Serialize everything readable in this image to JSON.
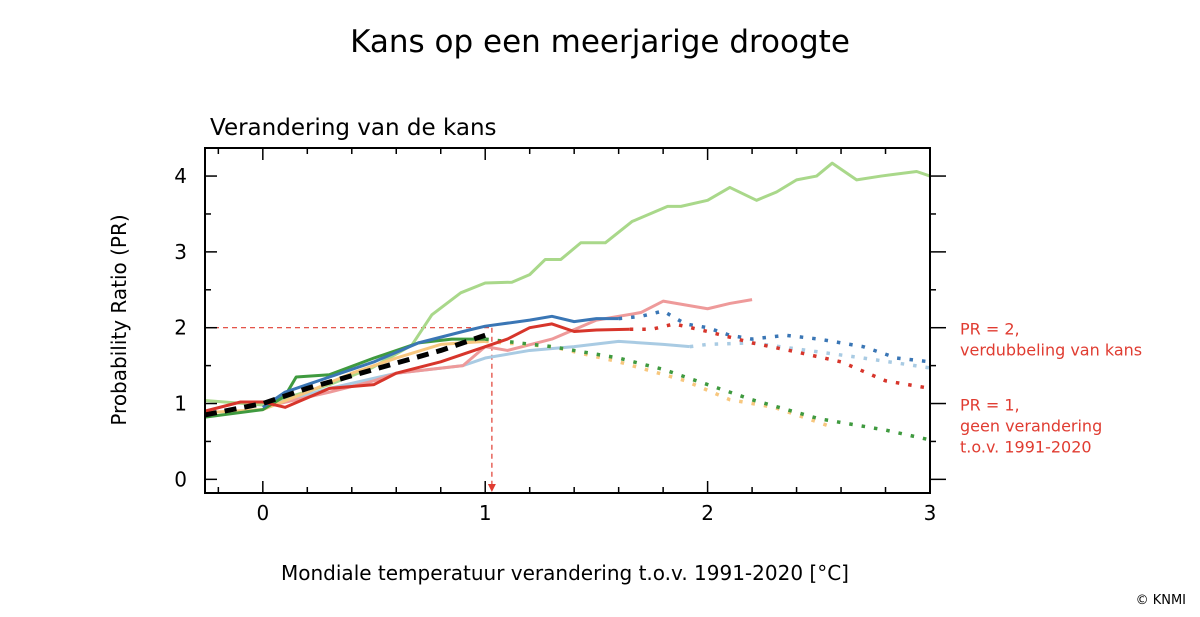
{
  "title": "Kans op een meerjarige droogte",
  "copyright": "© KNMI",
  "chart_data": {
    "type": "line",
    "subtitle": "Verandering van de kans",
    "xlabel": "Mondiale temperatuur verandering t.o.v. 1991-2020 [°C]",
    "ylabel": "Probability Ratio (PR)",
    "xlim": [
      -0.26,
      3.0
    ],
    "ylim": [
      -0.18,
      4.37
    ],
    "xticks": [
      "0",
      "1",
      "2",
      "3"
    ],
    "yticks": [
      "0",
      "1",
      "2",
      "3",
      "4"
    ],
    "grid": false,
    "annotations": [
      {
        "lines": [
          "PR = 2,",
          "verdubbeling van kans"
        ],
        "y": 2,
        "color": "#e03c31"
      },
      {
        "lines": [
          "PR = 1,",
          "geen verandering",
          "t.o.v. 1991-2020"
        ],
        "y": 1,
        "color": "#e03c31"
      }
    ],
    "reference": {
      "pr": 2,
      "temperature": 1.03,
      "color": "#e03c31"
    },
    "series": [
      {
        "name": "light-green",
        "color": "#a9d88a",
        "solid": [
          [
            -0.26,
            1.04
          ],
          [
            0,
            0.98
          ],
          [
            0.3,
            1.25
          ],
          [
            0.49,
            1.47
          ],
          [
            0.67,
            1.77
          ],
          [
            0.76,
            2.17
          ],
          [
            0.89,
            2.46
          ],
          [
            1.0,
            2.59
          ],
          [
            1.12,
            2.6
          ],
          [
            1.2,
            2.7
          ],
          [
            1.27,
            2.9
          ],
          [
            1.34,
            2.9
          ],
          [
            1.43,
            3.12
          ],
          [
            1.54,
            3.12
          ],
          [
            1.66,
            3.4
          ],
          [
            1.82,
            3.6
          ],
          [
            1.88,
            3.6
          ],
          [
            2.0,
            3.68
          ],
          [
            2.1,
            3.85
          ],
          [
            2.22,
            3.68
          ],
          [
            2.31,
            3.79
          ],
          [
            2.4,
            3.95
          ],
          [
            2.49,
            4.0
          ],
          [
            2.56,
            4.17
          ],
          [
            2.67,
            3.95
          ],
          [
            2.78,
            4.0
          ],
          [
            2.94,
            4.06
          ],
          [
            3.0,
            4.0
          ]
        ],
        "dotted": []
      },
      {
        "name": "light-blue",
        "color": "#a9cbe3",
        "solid": [
          [
            0,
            0.95
          ],
          [
            0.3,
            1.2
          ],
          [
            0.6,
            1.4
          ],
          [
            0.9,
            1.5
          ],
          [
            1.0,
            1.6
          ],
          [
            1.2,
            1.7
          ],
          [
            1.4,
            1.75
          ],
          [
            1.6,
            1.82
          ],
          [
            1.8,
            1.78
          ],
          [
            1.92,
            1.75
          ]
        ],
        "dotted": [
          [
            2.0,
            1.78
          ],
          [
            2.2,
            1.8
          ],
          [
            2.4,
            1.72
          ],
          [
            2.7,
            1.6
          ],
          [
            3.0,
            1.47
          ]
        ]
      },
      {
        "name": "pink",
        "color": "#ee9a9a",
        "solid": [
          [
            0,
            0.95
          ],
          [
            0.3,
            1.15
          ],
          [
            0.5,
            1.3
          ],
          [
            0.6,
            1.4
          ],
          [
            0.9,
            1.5
          ],
          [
            1.0,
            1.75
          ],
          [
            1.1,
            1.7
          ],
          [
            1.3,
            1.85
          ],
          [
            1.5,
            2.1
          ],
          [
            1.7,
            2.2
          ],
          [
            1.8,
            2.35
          ],
          [
            2.0,
            2.25
          ],
          [
            2.1,
            2.32
          ],
          [
            2.2,
            2.37
          ]
        ],
        "dotted": []
      },
      {
        "name": "orange",
        "color": "#f7c77e",
        "solid": [
          [
            -0.26,
            0.88
          ],
          [
            0,
            0.92
          ],
          [
            0.2,
            1.15
          ],
          [
            0.4,
            1.4
          ],
          [
            0.6,
            1.6
          ],
          [
            0.8,
            1.78
          ],
          [
            1.0,
            1.82
          ]
        ],
        "dotted": [
          [
            1.3,
            1.75
          ],
          [
            1.6,
            1.55
          ],
          [
            1.9,
            1.3
          ],
          [
            2.1,
            1.05
          ],
          [
            2.3,
            0.95
          ],
          [
            2.55,
            0.7
          ]
        ]
      },
      {
        "name": "dark-green",
        "color": "#3f9a3f",
        "solid": [
          [
            -0.26,
            0.82
          ],
          [
            0,
            0.92
          ],
          [
            0.1,
            1.1
          ],
          [
            0.15,
            1.35
          ],
          [
            0.3,
            1.38
          ],
          [
            0.5,
            1.6
          ],
          [
            0.7,
            1.8
          ],
          [
            0.85,
            1.85
          ],
          [
            1.0,
            1.85
          ]
        ],
        "dotted": [
          [
            1.3,
            1.75
          ],
          [
            1.6,
            1.6
          ],
          [
            1.8,
            1.45
          ],
          [
            2.0,
            1.25
          ],
          [
            2.2,
            1.05
          ],
          [
            2.5,
            0.8
          ],
          [
            2.8,
            0.65
          ],
          [
            3.0,
            0.52
          ]
        ]
      },
      {
        "name": "blue",
        "color": "#3a76b5",
        "solid": [
          [
            0,
            0.95
          ],
          [
            0.1,
            1.15
          ],
          [
            0.3,
            1.35
          ],
          [
            0.5,
            1.55
          ],
          [
            0.7,
            1.8
          ],
          [
            0.9,
            1.95
          ],
          [
            1.0,
            2.02
          ],
          [
            1.2,
            2.1
          ],
          [
            1.3,
            2.15
          ],
          [
            1.4,
            2.08
          ],
          [
            1.5,
            2.12
          ],
          [
            1.6,
            2.12
          ]
        ],
        "dotted": [
          [
            1.7,
            2.15
          ],
          [
            1.8,
            2.22
          ],
          [
            1.9,
            2.05
          ],
          [
            2.0,
            2.0
          ],
          [
            2.1,
            1.9
          ],
          [
            2.2,
            1.85
          ],
          [
            2.35,
            1.9
          ],
          [
            2.5,
            1.85
          ],
          [
            2.7,
            1.75
          ],
          [
            2.85,
            1.6
          ],
          [
            3.0,
            1.55
          ]
        ]
      },
      {
        "name": "red",
        "color": "#d7352b",
        "solid": [
          [
            -0.26,
            0.9
          ],
          [
            -0.1,
            1.02
          ],
          [
            0,
            1.02
          ],
          [
            0.1,
            0.95
          ],
          [
            0.3,
            1.2
          ],
          [
            0.5,
            1.25
          ],
          [
            0.6,
            1.4
          ],
          [
            0.8,
            1.55
          ],
          [
            1.0,
            1.75
          ],
          [
            1.1,
            1.85
          ],
          [
            1.2,
            2.0
          ],
          [
            1.3,
            2.05
          ],
          [
            1.4,
            1.95
          ],
          [
            1.5,
            1.97
          ],
          [
            1.65,
            1.98
          ]
        ],
        "dotted": [
          [
            1.75,
            1.98
          ],
          [
            1.85,
            2.05
          ],
          [
            2.0,
            1.95
          ],
          [
            2.2,
            1.8
          ],
          [
            2.4,
            1.68
          ],
          [
            2.6,
            1.55
          ],
          [
            2.8,
            1.3
          ],
          [
            3.0,
            1.2
          ]
        ]
      },
      {
        "name": "mean",
        "color": "#000000",
        "dashed": true,
        "solid": [
          [
            -0.26,
            0.85
          ],
          [
            0,
            1.0
          ],
          [
            0.2,
            1.2
          ],
          [
            0.5,
            1.45
          ],
          [
            0.8,
            1.7
          ],
          [
            1.0,
            1.9
          ]
        ],
        "dotted": []
      }
    ]
  }
}
